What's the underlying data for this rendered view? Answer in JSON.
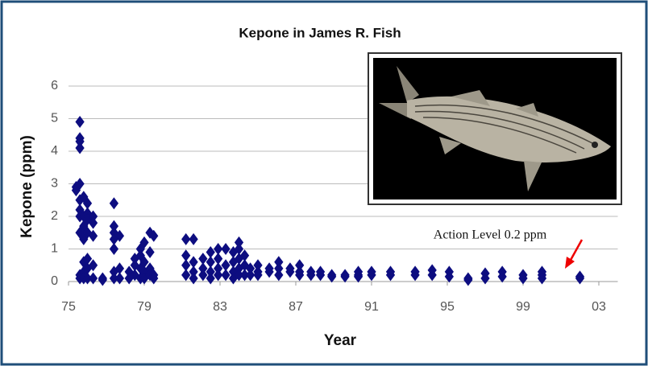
{
  "chart_data": {
    "type": "scatter",
    "title": "Kepone in James R. Fish",
    "x_label": "Year",
    "y_label": "Kepone (ppm)",
    "annotation": "Action Level 0.2 ppm",
    "color": "#0d0d80",
    "marker": "diamond",
    "grid": true,
    "xlim": [
      1975,
      2004
    ],
    "ylim": [
      0,
      6
    ],
    "xticks": [
      {
        "value": 1975,
        "label": "75"
      },
      {
        "value": 1979,
        "label": "79"
      },
      {
        "value": 1983,
        "label": "83"
      },
      {
        "value": 1987,
        "label": "87"
      },
      {
        "value": 1991,
        "label": "91"
      },
      {
        "value": 1995,
        "label": "95"
      },
      {
        "value": 1999,
        "label": "99"
      },
      {
        "value": 2003,
        "label": "03"
      }
    ],
    "yticks": [
      0,
      1,
      2,
      3,
      4,
      5,
      6
    ],
    "x": [
      1975.4,
      1975.4,
      1975.6,
      1975.6,
      1975.6,
      1975.6,
      1975.6,
      1975.6,
      1975.6,
      1975.6,
      1975.6,
      1975.6,
      1975.6,
      1975.8,
      1975.8,
      1975.8,
      1975.8,
      1975.8,
      1975.8,
      1975.8,
      1976.0,
      1976.0,
      1976.0,
      1976.0,
      1976.0,
      1976.0,
      1976.0,
      1976.3,
      1976.3,
      1976.3,
      1976.3,
      1976.3,
      1976.8,
      1976.8,
      1977.4,
      1977.4,
      1977.4,
      1977.4,
      1977.4,
      1977.4,
      1977.4,
      1977.7,
      1977.7,
      1977.7,
      1978.2,
      1978.2,
      1978.5,
      1978.5,
      1978.5,
      1978.8,
      1978.8,
      1978.8,
      1978.8,
      1979.0,
      1979.0,
      1979.0,
      1979.0,
      1979.3,
      1979.3,
      1979.3,
      1979.3,
      1979.5,
      1979.5,
      1979.5,
      1981.2,
      1981.2,
      1981.2,
      1981.2,
      1981.6,
      1981.6,
      1981.6,
      1981.6,
      1982.1,
      1982.1,
      1982.1,
      1982.5,
      1982.5,
      1982.5,
      1982.5,
      1982.9,
      1982.9,
      1982.9,
      1982.9,
      1983.3,
      1983.3,
      1983.3,
      1983.7,
      1983.7,
      1983.7,
      1983.7,
      1984.0,
      1984.0,
      1984.0,
      1984.0,
      1984.0,
      1984.3,
      1984.3,
      1984.3,
      1984.6,
      1984.6,
      1985.0,
      1985.0,
      1985.0,
      1985.6,
      1985.6,
      1986.1,
      1986.1,
      1986.1,
      1986.7,
      1986.7,
      1987.2,
      1987.2,
      1987.2,
      1987.8,
      1987.8,
      1988.3,
      1988.3,
      1988.9,
      1988.9,
      1989.6,
      1989.6,
      1990.3,
      1990.3,
      1990.3,
      1991.0,
      1991.0,
      1992.0,
      1992.0,
      1993.3,
      1993.3,
      1994.2,
      1994.2,
      1995.1,
      1995.1,
      1996.1,
      1996.1,
      1997.0,
      1997.0,
      1997.9,
      1997.9,
      1999.0,
      1999.0,
      2000.0,
      2000.0,
      2000.0,
      2002.0,
      2002.0
    ],
    "values": [
      2.9,
      2.8,
      4.9,
      4.4,
      4.3,
      4.1,
      3.0,
      2.5,
      2.2,
      2.0,
      1.5,
      0.2,
      0.1,
      2.6,
      2.0,
      1.7,
      1.3,
      0.6,
      0.3,
      0.1,
      2.4,
      2.1,
      1.9,
      1.5,
      0.7,
      0.4,
      0.1,
      2.0,
      1.8,
      1.4,
      0.5,
      0.1,
      0.1,
      0.05,
      2.4,
      1.7,
      1.5,
      1.3,
      1.0,
      0.3,
      0.1,
      1.4,
      0.4,
      0.1,
      0.3,
      0.1,
      0.7,
      0.5,
      0.2,
      1.0,
      0.8,
      0.4,
      0.1,
      1.2,
      0.6,
      0.3,
      0.1,
      1.5,
      0.9,
      0.4,
      0.2,
      1.4,
      0.2,
      0.1,
      1.3,
      0.8,
      0.5,
      0.2,
      1.3,
      0.6,
      0.3,
      0.1,
      0.7,
      0.4,
      0.2,
      0.9,
      0.6,
      0.3,
      0.1,
      1.0,
      0.7,
      0.4,
      0.2,
      1.0,
      0.5,
      0.2,
      0.9,
      0.6,
      0.3,
      0.1,
      1.2,
      1.0,
      0.7,
      0.4,
      0.2,
      0.8,
      0.5,
      0.2,
      0.4,
      0.2,
      0.5,
      0.3,
      0.2,
      0.4,
      0.3,
      0.6,
      0.4,
      0.2,
      0.4,
      0.3,
      0.5,
      0.3,
      0.2,
      0.3,
      0.2,
      0.3,
      0.2,
      0.2,
      0.15,
      0.2,
      0.15,
      0.3,
      0.2,
      0.15,
      0.3,
      0.2,
      0.3,
      0.2,
      0.3,
      0.2,
      0.35,
      0.2,
      0.3,
      0.15,
      0.1,
      0.05,
      0.25,
      0.1,
      0.3,
      0.15,
      0.2,
      0.1,
      0.3,
      0.2,
      0.1,
      0.15,
      0.1
    ]
  }
}
